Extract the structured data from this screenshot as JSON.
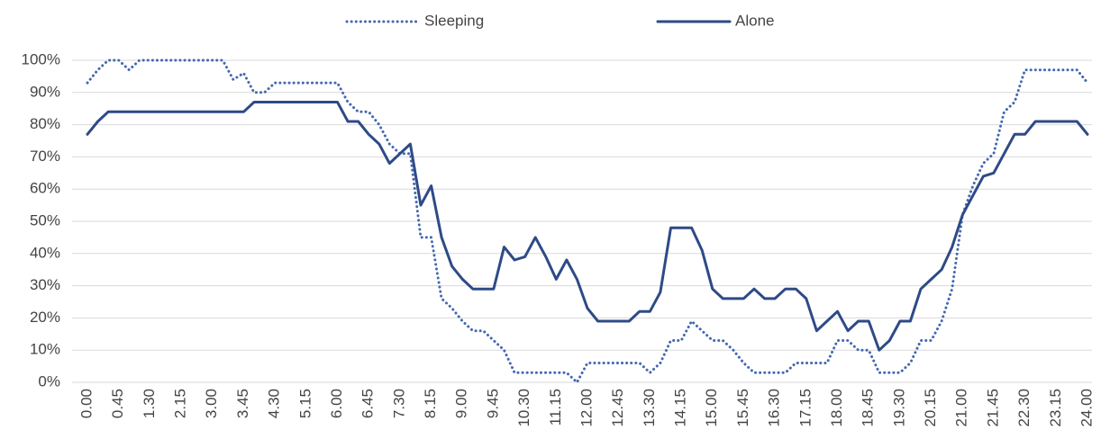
{
  "chart_data": {
    "type": "line",
    "categories": [
      "0.00",
      null,
      null,
      "0.45",
      null,
      null,
      "1.30",
      null,
      null,
      "2.15",
      null,
      null,
      "3.00",
      null,
      null,
      "3.45",
      null,
      null,
      "4.30",
      null,
      null,
      "5.15",
      null,
      null,
      "6.00",
      null,
      null,
      "6.45",
      null,
      null,
      "7.30",
      null,
      null,
      "8.15",
      null,
      null,
      "9.00",
      null,
      null,
      "9.45",
      null,
      null,
      "10.30",
      null,
      null,
      "11.15",
      null,
      null,
      "12.00",
      null,
      null,
      "12.45",
      null,
      null,
      "13.30",
      null,
      null,
      "14.15",
      null,
      null,
      "15.00",
      null,
      null,
      "15.45",
      null,
      null,
      "16.30",
      null,
      null,
      "17.15",
      null,
      null,
      "18.00",
      null,
      null,
      "18.45",
      null,
      null,
      "19.30",
      null,
      null,
      "20.15",
      null,
      null,
      "21.00",
      null,
      null,
      "21.45",
      null,
      null,
      "22.30",
      null,
      null,
      "23.15",
      null,
      null,
      "24.00"
    ],
    "series": [
      {
        "name": "Sleeping",
        "color": "#4468b0",
        "dash": true,
        "values": [
          93,
          97,
          100,
          100,
          97,
          100,
          100,
          100,
          100,
          100,
          100,
          100,
          100,
          100,
          94,
          96,
          90,
          90,
          93,
          93,
          93,
          93,
          93,
          93,
          93,
          87,
          84,
          84,
          80,
          74,
          71,
          71,
          45,
          45,
          26,
          23,
          19,
          16,
          16,
          13,
          10,
          3,
          3,
          3,
          3,
          3,
          3,
          0,
          6,
          6,
          6,
          6,
          6,
          6,
          3,
          6,
          13,
          13,
          19,
          16,
          13,
          13,
          10,
          6,
          3,
          3,
          3,
          3,
          6,
          6,
          6,
          6,
          13,
          13,
          10,
          10,
          3,
          3,
          3,
          6,
          13,
          13,
          19,
          29,
          52,
          61,
          68,
          71,
          84,
          87,
          97,
          97,
          97,
          97,
          97,
          97,
          93
        ]
      },
      {
        "name": "Alone",
        "color": "#2e4a87",
        "dash": false,
        "values": [
          77,
          81,
          84,
          84,
          84,
          84,
          84,
          84,
          84,
          84,
          84,
          84,
          84,
          84,
          84,
          84,
          87,
          87,
          87,
          87,
          87,
          87,
          87,
          87,
          87,
          81,
          81,
          77,
          74,
          68,
          71,
          74,
          55,
          61,
          45,
          36,
          32,
          29,
          29,
          29,
          42,
          38,
          39,
          45,
          39,
          32,
          38,
          32,
          23,
          19,
          19,
          19,
          19,
          22,
          22,
          28,
          48,
          48,
          48,
          41,
          29,
          26,
          26,
          26,
          29,
          26,
          26,
          29,
          29,
          26,
          16,
          19,
          22,
          16,
          19,
          19,
          10,
          13,
          19,
          19,
          29,
          32,
          35,
          42,
          52,
          58,
          64,
          65,
          71,
          77,
          77,
          81,
          81,
          81,
          81,
          81,
          77
        ]
      }
    ],
    "ylim": [
      0,
      100
    ],
    "yticks": [
      {
        "value": 0,
        "label": "0%"
      },
      {
        "value": 10,
        "label": "10%"
      },
      {
        "value": 20,
        "label": "20%"
      },
      {
        "value": 30,
        "label": "30%"
      },
      {
        "value": 40,
        "label": "40%"
      },
      {
        "value": 50,
        "label": "50%"
      },
      {
        "value": 60,
        "label": "60%"
      },
      {
        "value": 70,
        "label": "70%"
      },
      {
        "value": 80,
        "label": "80%"
      },
      {
        "value": 90,
        "label": "90%"
      },
      {
        "value": 100,
        "label": "100%"
      }
    ],
    "grid": true,
    "legend": "top"
  }
}
